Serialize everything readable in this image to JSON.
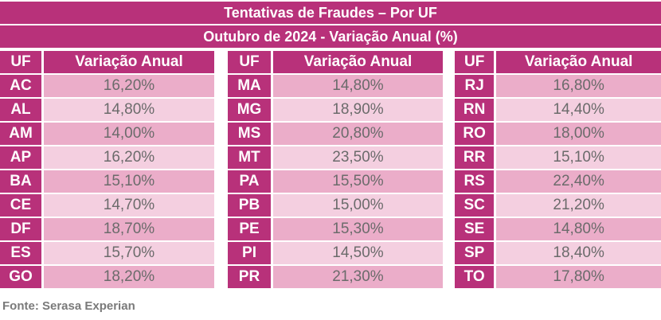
{
  "chart_data": {
    "type": "table",
    "title": "Tentativas de Fraudes – Por UF",
    "subtitle": "Outubro de 2024 - Variação Anual (%)",
    "columns": [
      "UF",
      "Variação Anual"
    ],
    "groups": [
      {
        "rows": [
          {
            "uf": "AC",
            "value": "16,20%"
          },
          {
            "uf": "AL",
            "value": "14,80%"
          },
          {
            "uf": "AM",
            "value": "14,00%"
          },
          {
            "uf": "AP",
            "value": "16,20%"
          },
          {
            "uf": "BA",
            "value": "15,10%"
          },
          {
            "uf": "CE",
            "value": "14,70%"
          },
          {
            "uf": "DF",
            "value": "18,70%"
          },
          {
            "uf": "ES",
            "value": "15,70%"
          },
          {
            "uf": "GO",
            "value": "18,20%"
          }
        ]
      },
      {
        "rows": [
          {
            "uf": "MA",
            "value": "14,80%"
          },
          {
            "uf": "MG",
            "value": "18,90%"
          },
          {
            "uf": "MS",
            "value": "20,80%"
          },
          {
            "uf": "MT",
            "value": "23,50%"
          },
          {
            "uf": "PA",
            "value": "15,50%"
          },
          {
            "uf": "PB",
            "value": "15,00%"
          },
          {
            "uf": "PE",
            "value": "15,30%"
          },
          {
            "uf": "PI",
            "value": "14,50%"
          },
          {
            "uf": "PR",
            "value": "21,30%"
          }
        ]
      },
      {
        "rows": [
          {
            "uf": "RJ",
            "value": "16,80%"
          },
          {
            "uf": "RN",
            "value": "14,40%"
          },
          {
            "uf": "RO",
            "value": "18,00%"
          },
          {
            "uf": "RR",
            "value": "15,10%"
          },
          {
            "uf": "RS",
            "value": "22,40%"
          },
          {
            "uf": "SC",
            "value": "21,20%"
          },
          {
            "uf": "SE",
            "value": "14,80%"
          },
          {
            "uf": "SP",
            "value": "18,40%"
          },
          {
            "uf": "TO",
            "value": "17,80%"
          }
        ]
      }
    ],
    "source": "Fonte: Serasa Experian",
    "colors": {
      "header": "#b8317a",
      "row_odd": "#ebadc9",
      "row_even": "#f4cfe0",
      "value_text": "#6b6b6b"
    }
  }
}
